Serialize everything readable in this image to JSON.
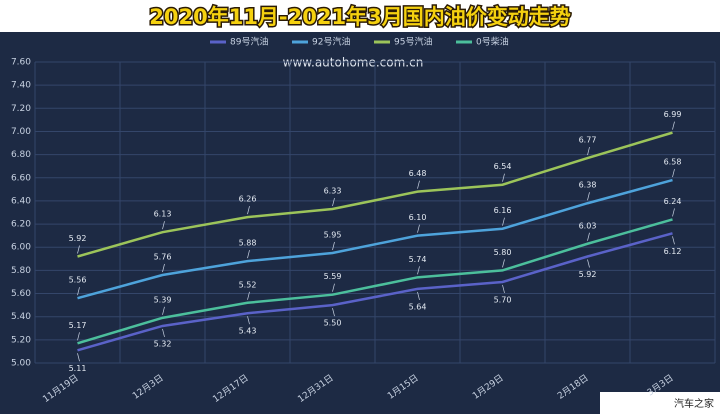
{
  "chart_data": {
    "type": "line",
    "title": "2020年11月-2021年3月国内油价变动走势",
    "watermark": "www.autohome.com.cn",
    "source": "汽车之家",
    "categories": [
      "11月19日",
      "12月3日",
      "12月17日",
      "12月31日",
      "1月15日",
      "1月29日",
      "2月18日",
      "3月3日"
    ],
    "series": [
      {
        "name": "89号汽油",
        "color": "#5a62c8",
        "values": [
          5.11,
          5.32,
          5.43,
          5.5,
          5.64,
          5.7,
          5.92,
          6.12
        ],
        "value_labels": [
          "5.11",
          "5.32",
          "5.43",
          "5.50",
          "5.64",
          "5.70",
          "5.92",
          "6.12"
        ]
      },
      {
        "name": "92号汽油",
        "color": "#4ea3db",
        "values": [
          5.56,
          5.76,
          5.88,
          5.95,
          6.1,
          6.16,
          6.38,
          6.58
        ],
        "value_labels": [
          "5.56",
          "5.76",
          "5.88",
          "5.95",
          "6.10",
          "6.16",
          "6.38",
          "6.58"
        ]
      },
      {
        "name": "95号汽油",
        "color": "#9cc45a",
        "values": [
          5.92,
          6.13,
          6.26,
          6.33,
          6.48,
          6.54,
          6.77,
          6.99
        ],
        "value_labels": [
          "5.92",
          "6.13",
          "6.26",
          "6.33",
          "6.48",
          "6.54",
          "6.77",
          "6.99"
        ]
      },
      {
        "name": "0号柴油",
        "color": "#4cbf9c",
        "values": [
          5.17,
          5.39,
          5.52,
          5.59,
          5.74,
          5.8,
          6.03,
          6.24
        ],
        "value_labels": [
          "5.17",
          "5.39",
          "5.52",
          "5.59",
          "5.74",
          "5.80",
          "6.03",
          "6.24"
        ]
      }
    ],
    "ylim": [
      5.0,
      7.6
    ],
    "yticks": [
      {
        "value": 5.0,
        "label": "5.00"
      },
      {
        "value": 5.2,
        "label": "5.20"
      },
      {
        "value": 5.4,
        "label": "5.40"
      },
      {
        "value": 5.6,
        "label": "5.60"
      },
      {
        "value": 5.8,
        "label": "5.80"
      },
      {
        "value": 6.0,
        "label": "6.00"
      },
      {
        "value": 6.2,
        "label": "6.20"
      },
      {
        "value": 6.4,
        "label": "6.40"
      },
      {
        "value": 6.6,
        "label": "6.60"
      },
      {
        "value": 6.8,
        "label": "6.80"
      },
      {
        "value": 7.0,
        "label": "7.00"
      },
      {
        "value": 7.2,
        "label": "7.20"
      },
      {
        "value": 7.4,
        "label": "7.40"
      },
      {
        "value": 7.6,
        "label": "7.60"
      }
    ],
    "grid": true
  }
}
